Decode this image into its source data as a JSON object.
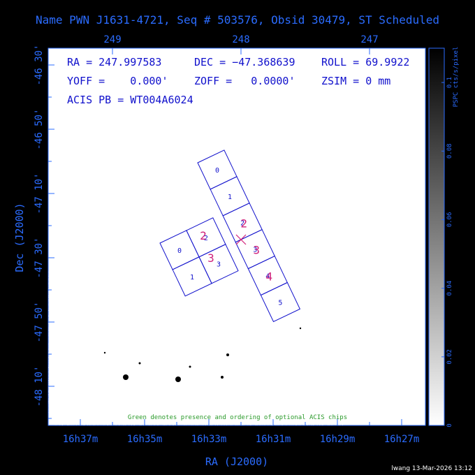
{
  "chart_data": {
    "type": "heatmap",
    "title": "Name PWN J1631-4721, Seq # 503576, Obsid 30479, ST Scheduled",
    "xlabel": "RA (J2000)",
    "ylabel": "Dec (J2000)",
    "x_ticks_bottom": [
      "16h37m",
      "16h35m",
      "16h33m",
      "16h31m",
      "16h29m",
      "16h27m"
    ],
    "x_ticks_top": [
      "249",
      "248",
      "247"
    ],
    "y_ticks": [
      "-46 30'",
      "-46 50'",
      "-47 10'",
      "-47 30'",
      "-47 50'",
      "-48 10'"
    ],
    "info": {
      "ra": "RA = 247.997583",
      "dec": "DEC = −47.368639",
      "roll": "ROLL = 69.9922",
      "yoff": "YOFF =    0.000'",
      "zoff": "ZOFF =   0.0000'",
      "zsim": "ZSIM = 0 mm",
      "acis": "ACIS PB = WT004A6024"
    },
    "colorbar": {
      "label": "PSPC cts/s/pixel",
      "ticks": [
        "0",
        "0.02",
        "0.04",
        "0.06",
        "0.08",
        "0.1"
      ],
      "values": [
        0,
        0.02,
        0.04,
        0.06,
        0.08,
        0.1
      ],
      "range": [
        0,
        0.11
      ]
    },
    "acis_s_chips": [
      "0",
      "1",
      "2",
      "3",
      "4",
      "5"
    ],
    "acis_i_chips": [
      "0",
      "1",
      "2",
      "3"
    ],
    "optional_chip_marks": [
      "2",
      "3"
    ],
    "note": "Green denotes presence and ordering of optional ACIS chips",
    "footer": "lwang 13-Mar-2026 13:12",
    "colors": {
      "axis": "#2b6cff",
      "chip": "#1010cc",
      "optional": "#d0207a",
      "note": "#2a9a2a"
    }
  }
}
